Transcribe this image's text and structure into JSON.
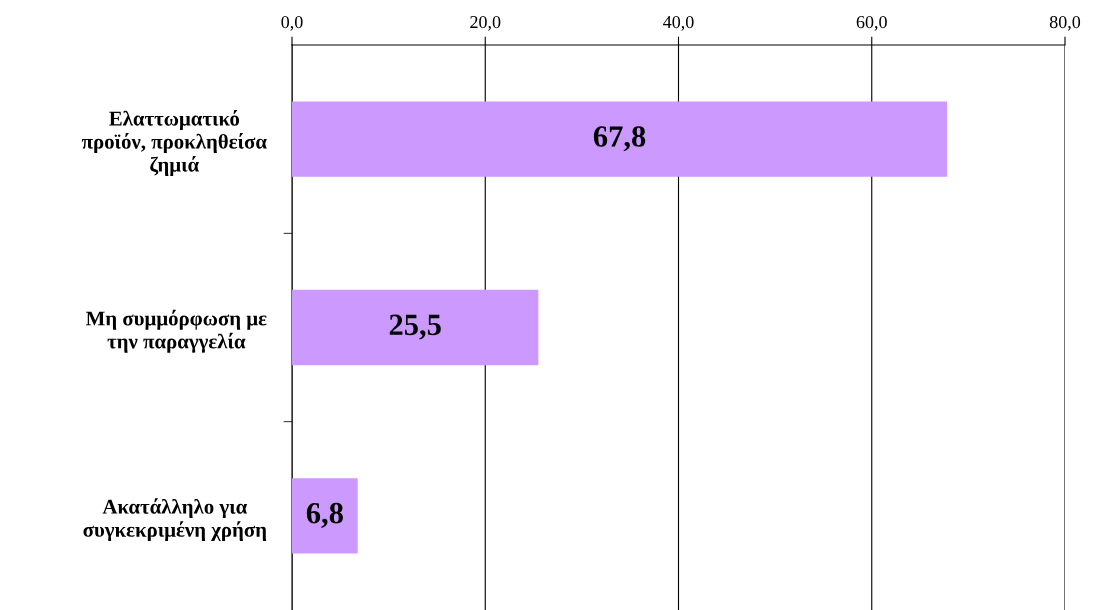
{
  "chart_data": {
    "type": "bar",
    "orientation": "horizontal",
    "categories": [
      "Ελαττωματικό προϊόν, προκληθείσα ζημιά",
      "Μη συμμόρφωση με την παραγγελία",
      "Ακατάλληλο για συγκεκριμένη χρήση"
    ],
    "values": [
      67.8,
      25.5,
      6.8
    ],
    "value_labels": [
      "67,8",
      "25,5",
      "6,8"
    ],
    "color": "#cc99ff",
    "xlim": [
      0,
      80
    ],
    "xticks": [
      {
        "value": 0,
        "label": "0,0"
      },
      {
        "value": 20,
        "label": "20,0"
      },
      {
        "value": 40,
        "label": "40,0"
      },
      {
        "value": 60,
        "label": "60,0"
      },
      {
        "value": 80,
        "label": "80,0"
      }
    ],
    "grid": "x"
  }
}
